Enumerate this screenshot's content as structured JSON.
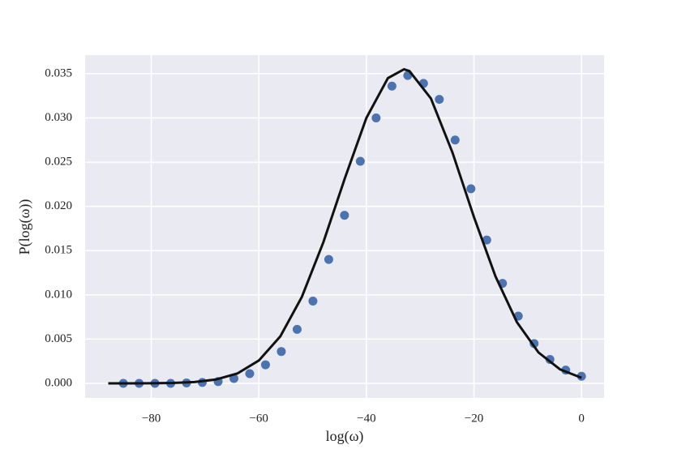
{
  "chart_data": {
    "type": "scatter",
    "xlabel": "log(ω)",
    "ylabel": "P(log(ω))",
    "xlim": [
      -92.3,
      4.2
    ],
    "ylim": [
      -0.00165,
      0.0371
    ],
    "xticks": [
      {
        "value": -80,
        "label": "−80"
      },
      {
        "value": -60,
        "label": "−60"
      },
      {
        "value": -40,
        "label": "−40"
      },
      {
        "value": -20,
        "label": "−20"
      },
      0
    ],
    "yticks": [
      {
        "value": 0,
        "label": "0.000"
      },
      {
        "value": 0.005,
        "label": "0.005"
      },
      {
        "value": 0.01,
        "label": "0.010"
      },
      {
        "value": 0.015,
        "label": "0.015"
      },
      {
        "value": 0.02,
        "label": "0.020"
      },
      {
        "value": 0.025,
        "label": "0.025"
      },
      {
        "value": 0.03,
        "label": "0.030"
      },
      {
        "value": 0.035,
        "label": "0.035"
      }
    ],
    "grid": true,
    "background": "#eaeaf2",
    "series": [
      {
        "type": "scatter",
        "color": "#4c72b0",
        "x": [
          -85.2,
          -82.26,
          -79.32,
          -76.39,
          -73.45,
          -70.51,
          -67.57,
          -64.63,
          -61.7,
          -58.76,
          -55.82,
          -52.88,
          -49.94,
          -47.0,
          -44.07,
          -41.13,
          -38.19,
          -35.25,
          -32.31,
          -29.38,
          -26.44,
          -23.5,
          -20.56,
          -17.62,
          -14.69,
          -11.75,
          -8.81,
          -5.87,
          -2.93,
          0.0
        ],
        "values": [
          0,
          0,
          0,
          0,
          5e-05,
          0.0001,
          0.0002,
          0.00055,
          0.0011,
          0.0021,
          0.0036,
          0.0061,
          0.0093,
          0.014,
          0.019,
          0.0251,
          0.03,
          0.0336,
          0.0348,
          0.0339,
          0.0321,
          0.0275,
          0.022,
          0.0162,
          0.0113,
          0.0076,
          0.0045,
          0.0027,
          0.0015,
          0.0008
        ]
      },
      {
        "type": "line",
        "color": "#111111",
        "x": [
          -88,
          -84,
          -80,
          -76,
          -72,
          -68,
          -64,
          -60,
          -56,
          -52,
          -48,
          -44,
          -40,
          -36,
          -33,
          -32,
          -28,
          -24,
          -20,
          -16,
          -12,
          -8,
          -4,
          0
        ],
        "values": [
          0,
          0,
          1e-05,
          4e-05,
          0.00015,
          0.00043,
          0.00111,
          0.00258,
          0.00531,
          0.00977,
          0.01595,
          0.02319,
          0.03,
          0.0345,
          0.0355,
          0.0353,
          0.0322,
          0.0261,
          0.0188,
          0.0121,
          0.0069,
          0.00349,
          0.00158,
          0.00063
        ]
      }
    ]
  }
}
